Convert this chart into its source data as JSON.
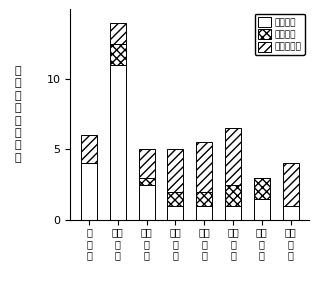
{
  "categories": [
    "十\n歳\n代",
    "二十\n歳\n代",
    "三十\n歳\n代",
    "四十\n歳\n代",
    "五十\n歳\n代",
    "六十\n歳\n代",
    "七十\n歳\n代",
    "八十\n歳\n代"
  ],
  "kotsu": [
    4,
    11,
    2.5,
    1,
    1,
    1,
    1.5,
    1
  ],
  "rosai": [
    0,
    1.5,
    0.5,
    1,
    1,
    1.5,
    1.5,
    0
  ],
  "hoka": [
    2,
    1.5,
    2,
    3,
    3.5,
    4,
    0,
    3
  ],
  "ylabel_chars": [
    "身",
    "障",
    "手",
    "帳",
    "発",
    "行",
    "件",
    "数"
  ],
  "legend_labels": [
    "交通事故",
    "労災事故",
    "其他の事故"
  ],
  "ylim": [
    0,
    15
  ],
  "yticks": [
    0,
    5,
    10
  ],
  "bar_width": 0.55,
  "bg_color": "#ffffff"
}
